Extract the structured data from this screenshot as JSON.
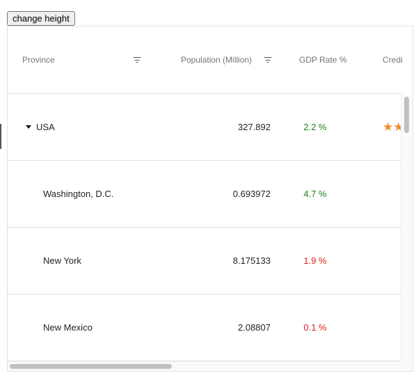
{
  "button": {
    "change_height_label": "change height"
  },
  "columns": [
    {
      "label": "Province",
      "filterable": true
    },
    {
      "label": "Population (Million)",
      "filterable": true
    },
    {
      "label": "GDP Rate %",
      "filterable": false
    },
    {
      "label": "Credit",
      "filterable": false
    }
  ],
  "rows": [
    {
      "province": "USA",
      "expanded": true,
      "population": "327.892",
      "gdp_rate": "2.2 %",
      "gdp_trend": "positive",
      "credit_stars": 2
    },
    {
      "province": "Washington, D.C.",
      "population": "0.693972",
      "gdp_rate": "4.7 %",
      "gdp_trend": "positive"
    },
    {
      "province": "New York",
      "population": "8.175133",
      "gdp_rate": "1.9 %",
      "gdp_trend": "negative"
    },
    {
      "province": "New Mexico",
      "population": "2.08807",
      "gdp_rate": "0.1 %",
      "gdp_trend": "negative"
    }
  ],
  "icons": {
    "filter": "filter-icon",
    "expand": "caret-down-icon",
    "rating": "star-icon"
  },
  "colors": {
    "positive": "#1a7f1a",
    "negative": "#e01b1b",
    "star": "#f08a2b"
  }
}
